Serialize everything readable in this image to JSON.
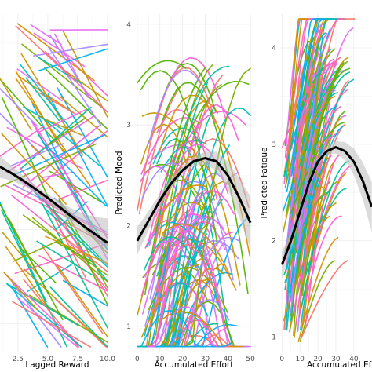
{
  "chart_data": [
    {
      "type": "line",
      "xlabel": "Lagged Reward",
      "ylabel": "",
      "xlim": [
        0.6,
        10.2
      ],
      "ylim": [
        0.7,
        4.3
      ],
      "x_ticks": [
        "2.5",
        "5.0",
        "7.5",
        "10.0"
      ],
      "x_tick_values": [
        2.5,
        5.0,
        7.5,
        10.0
      ],
      "y_ticks": [],
      "grid": true,
      "legend": "none",
      "individual_lines": {
        "count": 110,
        "trend": "mostly decreasing",
        "colors": [
          "#F8766D",
          "#E76BF3",
          "#00BFC4",
          "#7CAE00",
          "#C49A00",
          "#00B0F6",
          "#53B400",
          "#FF62BC",
          "#A58AFF",
          "#00C094",
          "#FB61D7",
          "#D89000"
        ]
      },
      "average": {
        "color": "#000000",
        "x": [
          0.6,
          2.0,
          3.0,
          4.0,
          5.0,
          6.0,
          7.0,
          8.0,
          9.0,
          10.0
        ],
        "y": [
          2.7,
          2.6,
          2.52,
          2.43,
          2.34,
          2.24,
          2.14,
          2.04,
          1.95,
          1.86
        ],
        "ci_color": "#bdbdbd"
      }
    },
    {
      "type": "line",
      "xlabel": "Accumulated Effort",
      "ylabel": "Predicted Mood",
      "xlim": [
        -1,
        51
      ],
      "ylim": [
        0.75,
        4.1
      ],
      "x_ticks": [
        "0",
        "10",
        "20",
        "30",
        "40",
        "50"
      ],
      "x_tick_values": [
        0,
        10,
        20,
        30,
        40,
        50
      ],
      "y_ticks": [
        "1",
        "2",
        "3",
        "4"
      ],
      "y_tick_values": [
        1,
        2,
        3,
        4
      ],
      "grid": true,
      "legend": "none",
      "individual_lines": {
        "count": 110,
        "trend": "mostly inverted-U",
        "colors": [
          "#F8766D",
          "#E76BF3",
          "#00BFC4",
          "#7CAE00",
          "#C49A00",
          "#00B0F6",
          "#53B400",
          "#FF62BC",
          "#A58AFF",
          "#00C094",
          "#FB61D7",
          "#D89000"
        ]
      },
      "average": {
        "color": "#000000",
        "x": [
          0,
          5,
          10,
          15,
          20,
          25,
          30,
          35,
          40,
          45,
          50
        ],
        "y": [
          1.85,
          2.05,
          2.25,
          2.42,
          2.55,
          2.64,
          2.67,
          2.64,
          2.5,
          2.28,
          2.03
        ],
        "ci_color": "#bdbdbd"
      }
    },
    {
      "type": "line",
      "xlabel": "Accumulated Effort",
      "ylabel": "Predicted Fatigue",
      "xlim": [
        -1,
        51
      ],
      "ylim": [
        0.85,
        4.35
      ],
      "x_ticks": [
        "0",
        "10",
        "20",
        "30",
        "40"
      ],
      "x_tick_values": [
        0,
        10,
        20,
        30,
        40
      ],
      "y_ticks": [
        "1",
        "2",
        "3",
        "4"
      ],
      "y_tick_values": [
        1,
        2,
        3,
        4
      ],
      "grid": true,
      "legend": "none",
      "individual_lines": {
        "count": 130,
        "trend": "mostly increasing",
        "colors": [
          "#F8766D",
          "#E76BF3",
          "#00BFC4",
          "#7CAE00",
          "#C49A00",
          "#00B0F6",
          "#53B400",
          "#FF62BC",
          "#A58AFF",
          "#00C094",
          "#FB61D7",
          "#D89000"
        ]
      },
      "average": {
        "color": "#000000",
        "x": [
          0,
          5,
          10,
          15,
          20,
          25,
          30,
          35,
          40,
          45,
          50
        ],
        "y": [
          1.75,
          2.0,
          2.3,
          2.6,
          2.82,
          2.93,
          2.97,
          2.93,
          2.82,
          2.62,
          2.35
        ],
        "ci_color": "#bdbdbd"
      }
    }
  ]
}
